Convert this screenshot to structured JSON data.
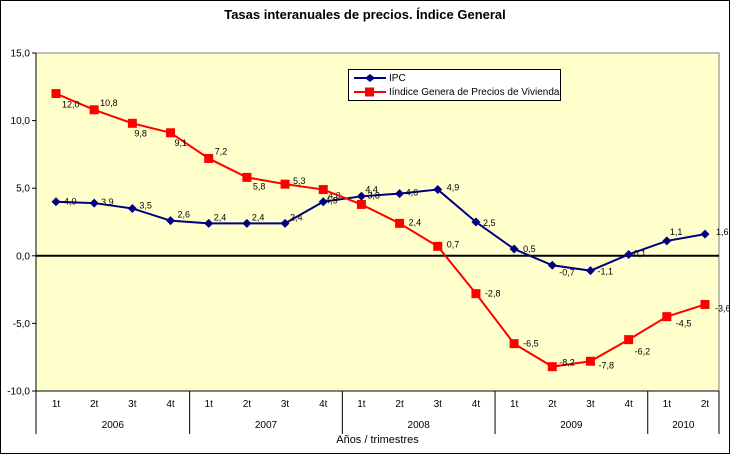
{
  "chart_data": {
    "type": "line",
    "title": "Tasas interanuales de precios. Índice General",
    "xlabel": "Años / trimestres",
    "plot_background_color": "#FFFFCC",
    "plot_border_color": "#808080",
    "axis_color": "#000000",
    "ylim": [
      -10,
      15
    ],
    "zero_line": true,
    "grid": false,
    "legend_position": "top-center",
    "y_ticks": [
      {
        "value": 15,
        "label": "15,0"
      },
      {
        "value": 10,
        "label": "10,0"
      },
      {
        "value": 5,
        "label": "5,0"
      },
      {
        "value": 0,
        "label": "0,0"
      },
      {
        "value": -5,
        "label": "-5,0"
      },
      {
        "value": -10,
        "label": "-10,0"
      }
    ],
    "x_categories": [
      "1t",
      "2t",
      "3t",
      "4t",
      "1t",
      "2t",
      "3t",
      "4t",
      "1t",
      "2t",
      "3t",
      "4t",
      "1t",
      "2t",
      "3t",
      "4t",
      "1t",
      "2t"
    ],
    "years": [
      {
        "label": "2006",
        "quarters": 4
      },
      {
        "label": "2007",
        "quarters": 4
      },
      {
        "label": "2008",
        "quarters": 4
      },
      {
        "label": "2009",
        "quarters": 4
      },
      {
        "label": "2010",
        "quarters": 2
      }
    ],
    "series": [
      {
        "name": "IPC",
        "color": "#000080",
        "marker": "diamond",
        "values": [
          4.0,
          3.9,
          3.5,
          2.6,
          2.4,
          2.4,
          2.4,
          4.0,
          4.4,
          4.6,
          4.9,
          2.5,
          0.5,
          -0.7,
          -1.1,
          0.1,
          1.1,
          1.6
        ],
        "labels": [
          "4,0",
          "3,9",
          "3,5",
          "2,6",
          "2,4",
          "2,4",
          "2,4",
          "4,0",
          "4,4",
          "4,6",
          "4,9",
          "2,5",
          "0,5",
          "-0,7",
          "-1,1",
          "0,1",
          "1,1",
          "1,6"
        ],
        "label_offsets": [
          [
            8,
            0
          ],
          [
            7,
            -1
          ],
          [
            7,
            -3
          ],
          [
            7,
            -6
          ],
          [
            5,
            -6
          ],
          [
            5,
            -6
          ],
          [
            5,
            -6
          ],
          [
            5,
            -6
          ],
          [
            4,
            -7
          ],
          [
            6,
            -1
          ],
          [
            9,
            -2
          ],
          [
            7,
            1
          ],
          [
            9,
            0
          ],
          [
            7,
            7
          ],
          [
            7,
            1
          ],
          [
            5,
            -1
          ],
          [
            3,
            -9
          ],
          [
            11,
            -2
          ]
        ]
      },
      {
        "name": "Iíndice Genera de Precios de Vivienda",
        "color": "#FF0000",
        "marker": "square",
        "values": [
          12.0,
          10.8,
          9.8,
          9.1,
          7.2,
          5.8,
          5.3,
          4.9,
          3.8,
          2.4,
          0.7,
          -2.8,
          -6.5,
          -8.2,
          -7.8,
          -6.2,
          -4.5,
          -3.6
        ],
        "labels": [
          "12,0",
          "10,8",
          "9,8",
          "9,1",
          "7,2",
          "5,8",
          "5,3",
          "4,9",
          "3,8",
          "2,4",
          "0,7",
          "-2,8",
          "-6,5",
          "-8,2",
          "-7,8",
          "-6,2",
          "-4,5",
          "-3,6"
        ],
        "label_offsets": [
          [
            6,
            11
          ],
          [
            6,
            -7
          ],
          [
            2,
            10
          ],
          [
            4,
            10
          ],
          [
            6,
            -7
          ],
          [
            6,
            9
          ],
          [
            8,
            -3
          ],
          [
            2,
            11
          ],
          [
            6,
            -9
          ],
          [
            9,
            -1
          ],
          [
            9,
            -2
          ],
          [
            9,
            0
          ],
          [
            9,
            0
          ],
          [
            7,
            -4
          ],
          [
            8,
            4
          ],
          [
            6,
            12
          ],
          [
            9,
            7
          ],
          [
            10,
            4
          ]
        ]
      }
    ]
  }
}
